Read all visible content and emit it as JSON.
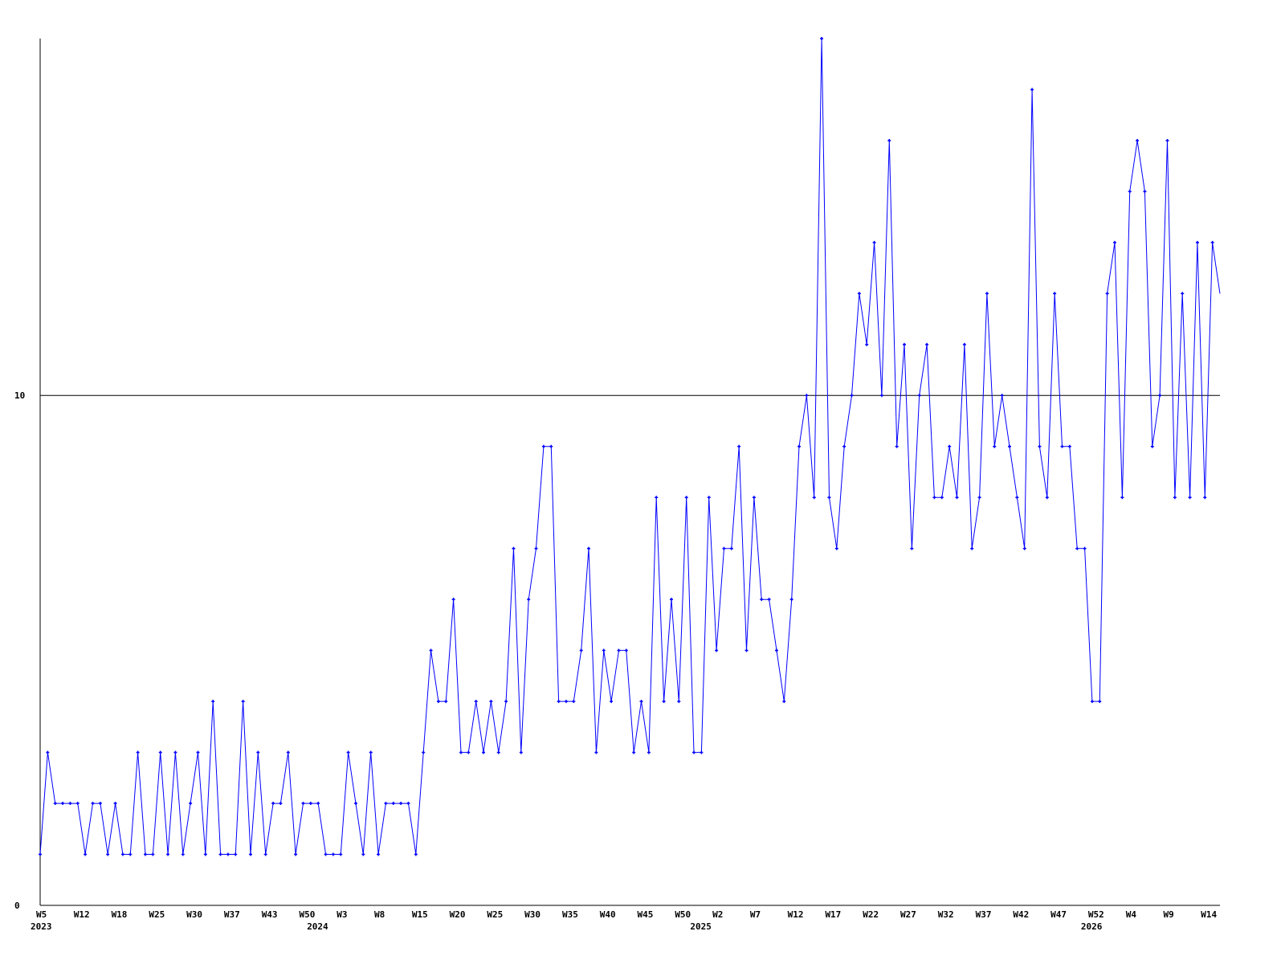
{
  "chart_data": {
    "type": "line",
    "title": "",
    "xlabel": "",
    "ylabel": "",
    "ylim": [
      0,
      17
    ],
    "y_ticks": [
      "0",
      "10"
    ],
    "grid": "horizontal line at 10",
    "legend": "none",
    "line_color": "#0000ff",
    "x_tick_labels": [
      "W5",
      "W12",
      "W18",
      "W25",
      "W30",
      "W37",
      "W43",
      "W50",
      "W3",
      "W8",
      "W15",
      "W20",
      "W25",
      "W30",
      "W35",
      "W40",
      "W45",
      "W50",
      "W2",
      "W7",
      "W12",
      "W17",
      "W22",
      "W27",
      "W32",
      "W37",
      "W42",
      "W47",
      "W52",
      "W4",
      "W9",
      "W14"
    ],
    "year_labels": [
      "2023",
      "2024",
      "2025",
      "2026"
    ],
    "series": [
      {
        "values": [
          1,
          3,
          2,
          2,
          2,
          2,
          1,
          2,
          2,
          1,
          2,
          1,
          1,
          3,
          1,
          1,
          3,
          1,
          3,
          1,
          2,
          3,
          1,
          4,
          1,
          1,
          1,
          4,
          1,
          3,
          1,
          2,
          2,
          3,
          1,
          2,
          2,
          2,
          1,
          1,
          1,
          3,
          2,
          1,
          3,
          1,
          2,
          2,
          2,
          2,
          1,
          3,
          5,
          4,
          4,
          6,
          3,
          3,
          4,
          3,
          4,
          3,
          4,
          7,
          3,
          6,
          7,
          9,
          9,
          4,
          4,
          4,
          5,
          7,
          3,
          5,
          4,
          5,
          5,
          3,
          4,
          3,
          8,
          4,
          6,
          4,
          8,
          3,
          3,
          8,
          5,
          7,
          7,
          9,
          5,
          8,
          6,
          6,
          5,
          4,
          6,
          9,
          10,
          8,
          17,
          8,
          7,
          9,
          10,
          12,
          11,
          13,
          10,
          15,
          9,
          11,
          7,
          10,
          11,
          8,
          8,
          9,
          8,
          11,
          7,
          8,
          12,
          9,
          10,
          9,
          8,
          7,
          16,
          9,
          8,
          12,
          9,
          9,
          7,
          7,
          4,
          4,
          12,
          13,
          8,
          14,
          15,
          14,
          9,
          10,
          15,
          8,
          12,
          8,
          13,
          8,
          13,
          12
        ]
      }
    ]
  }
}
